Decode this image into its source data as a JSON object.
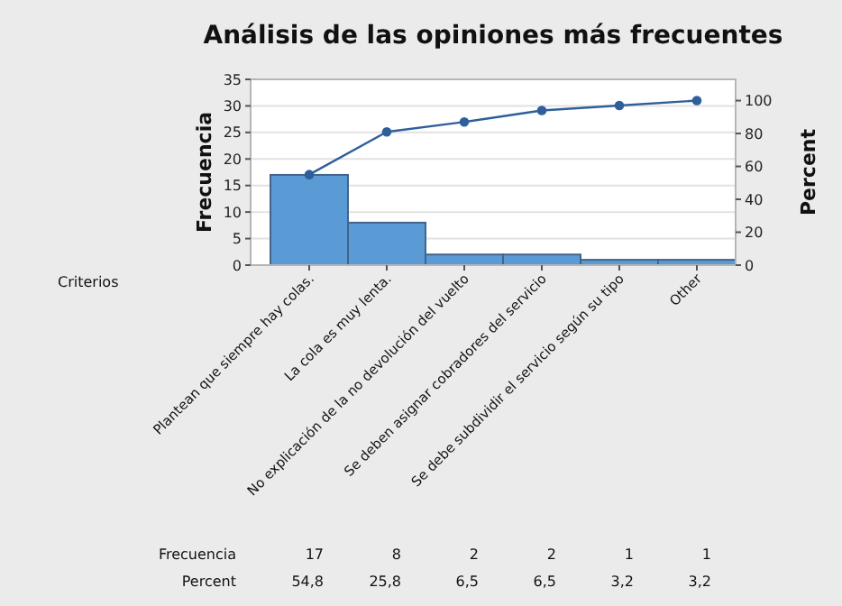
{
  "chart_data": {
    "type": "bar",
    "title": "Análisis de las opiniones más frecuentes",
    "xlabel": "Criterios",
    "ylabel": "Frecuencia",
    "y2label": "Percent",
    "categories": [
      "Plantean que siempre hay colas.",
      "La cola es muy lenta.",
      "No explicación de la no devolución del vuelto",
      "Se deben asignar cobradores del servicio",
      "Se debe subdividir el servicio según su tipo",
      "Other"
    ],
    "series": [
      {
        "color": "#5b9bd5",
        "values": [
          17,
          8,
          2,
          2,
          1,
          1
        ],
        "value_labels": [
          "17",
          "8",
          "2",
          "2",
          "1",
          "1"
        ]
      },
      {
        "type": "line",
        "axis": "y2",
        "color": "#2f5f9a",
        "values": [
          55,
          81,
          87,
          94,
          97,
          100
        ]
      }
    ],
    "ylim": [
      0,
      35
    ],
    "yticks": [
      0,
      5,
      10,
      15,
      20,
      25,
      30,
      35
    ],
    "y2lim": [
      0,
      112.9
    ],
    "y2ticks": [
      0,
      20,
      40,
      60,
      80,
      100
    ],
    "grid": "y",
    "marker": "circle",
    "annotations": [
      "Frecuencia",
      "Percent",
      "54,8",
      "25,8",
      "6,5",
      "6,5",
      "3,2",
      "3,2"
    ]
  }
}
